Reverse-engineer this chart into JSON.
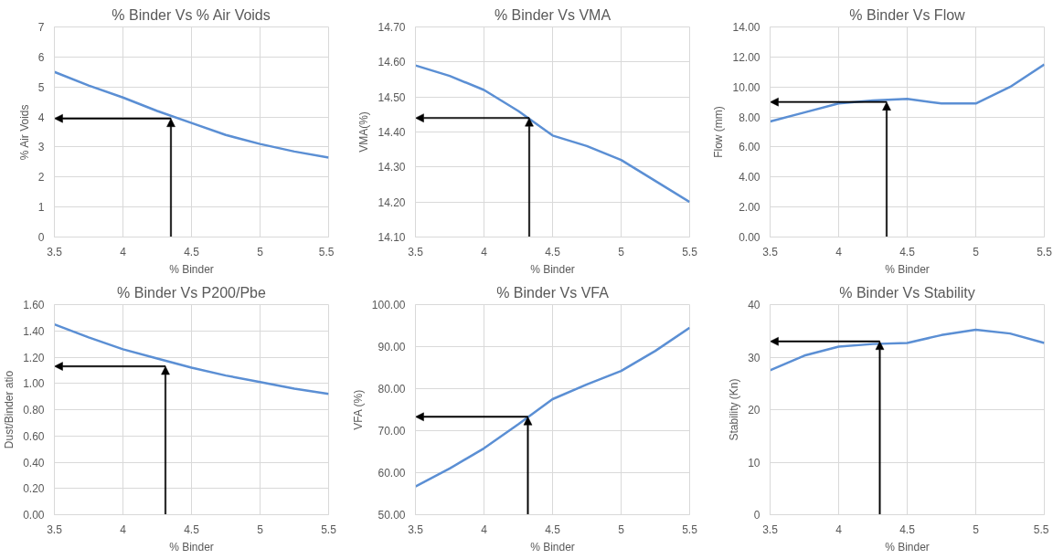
{
  "chart_data": [
    {
      "type": "line",
      "title": "% Binder Vs % Air Voids",
      "xlabel": "% Binder",
      "ylabel": "% Air Voids",
      "x": [
        3.5,
        3.75,
        4,
        4.25,
        4.5,
        4.75,
        5,
        5.25,
        5.5
      ],
      "series": [
        {
          "color": "#5b8fd4",
          "values": [
            5.5,
            5.05,
            4.65,
            4.2,
            3.8,
            3.4,
            3.1,
            2.85,
            2.65
          ]
        }
      ],
      "xlim": [
        3.5,
        5.5
      ],
      "xticks": [
        3.5,
        4,
        4.5,
        5,
        5.5
      ],
      "ylim": [
        0,
        7
      ],
      "yticks": [
        0,
        1,
        2,
        3,
        4,
        5,
        6,
        7
      ],
      "grid": true,
      "ref_lines": [
        {
          "axis": "x",
          "value": 4.35
        },
        {
          "axis": "y",
          "value": 3.95
        }
      ]
    },
    {
      "type": "line",
      "title": "% Binder Vs VMA",
      "xlabel": "% Binder",
      "ylabel": "VMA(%)",
      "x": [
        3.5,
        3.75,
        4,
        4.25,
        4.5,
        4.75,
        5,
        5.25,
        5.5
      ],
      "series": [
        {
          "color": "#5b8fd4",
          "values": [
            14.59,
            14.56,
            14.52,
            14.46,
            14.39,
            14.36,
            14.32,
            14.26,
            14.2
          ]
        }
      ],
      "xlim": [
        3.5,
        5.5
      ],
      "xticks": [
        3.5,
        4,
        4.5,
        5,
        5.5
      ],
      "ylim": [
        14.1,
        14.7
      ],
      "yticks": [
        {
          "value": 14.1,
          "label": "14.10"
        },
        {
          "value": 14.2,
          "label": "14.20"
        },
        {
          "value": 14.3,
          "label": "14.30"
        },
        {
          "value": 14.4,
          "label": "14.40"
        },
        {
          "value": 14.5,
          "label": "14.50"
        },
        {
          "value": 14.6,
          "label": "14.60"
        },
        {
          "value": 14.7,
          "label": "14.70"
        }
      ],
      "grid": true,
      "ref_lines": [
        {
          "axis": "x",
          "value": 4.33
        },
        {
          "axis": "y",
          "value": 14.44
        }
      ]
    },
    {
      "type": "line",
      "title": "% Binder Vs Flow",
      "xlabel": "% Binder",
      "ylabel": "Flow (mm)",
      "x": [
        3.5,
        3.75,
        4,
        4.25,
        4.5,
        4.75,
        5,
        5.25,
        5.5
      ],
      "series": [
        {
          "color": "#5b8fd4",
          "values": [
            7.7,
            8.3,
            8.9,
            9.1,
            9.2,
            8.9,
            8.9,
            10.0,
            11.5
          ]
        }
      ],
      "xlim": [
        3.5,
        5.5
      ],
      "xticks": [
        3.5,
        4,
        4.5,
        5,
        5.5
      ],
      "ylim": [
        0,
        14
      ],
      "yticks": [
        {
          "value": 0,
          "label": "0.00"
        },
        {
          "value": 2,
          "label": "2.00"
        },
        {
          "value": 4,
          "label": "4.00"
        },
        {
          "value": 6,
          "label": "6.00"
        },
        {
          "value": 8,
          "label": "8.00"
        },
        {
          "value": 10,
          "label": "10.00"
        },
        {
          "value": 12,
          "label": "12.00"
        },
        {
          "value": 14,
          "label": "14.00"
        }
      ],
      "grid": true,
      "ref_lines": [
        {
          "axis": "x",
          "value": 4.35
        },
        {
          "axis": "y",
          "value": 9.0
        }
      ]
    },
    {
      "type": "line",
      "title": "% Binder Vs P200/Pbe",
      "xlabel": "% Binder",
      "ylabel": "Dust/Binder atio",
      "x": [
        3.5,
        3.75,
        4,
        4.25,
        4.5,
        4.75,
        5,
        5.25,
        5.5
      ],
      "series": [
        {
          "color": "#5b8fd4",
          "values": [
            1.45,
            1.35,
            1.26,
            1.19,
            1.12,
            1.06,
            1.01,
            0.96,
            0.92
          ]
        }
      ],
      "xlim": [
        3.5,
        5.5
      ],
      "xticks": [
        3.5,
        4,
        4.5,
        5,
        5.5
      ],
      "ylim": [
        0,
        1.6
      ],
      "yticks": [
        {
          "value": 0,
          "label": "0.00"
        },
        {
          "value": 0.2,
          "label": "0.20"
        },
        {
          "value": 0.4,
          "label": "0.40"
        },
        {
          "value": 0.6,
          "label": "0.60"
        },
        {
          "value": 0.8,
          "label": "0.80"
        },
        {
          "value": 1.0,
          "label": "1.00"
        },
        {
          "value": 1.2,
          "label": "1.20"
        },
        {
          "value": 1.4,
          "label": "1.40"
        },
        {
          "value": 1.6,
          "label": "1.60"
        }
      ],
      "grid": true,
      "ref_lines": [
        {
          "axis": "x",
          "value": 4.31
        },
        {
          "axis": "y",
          "value": 1.13
        }
      ]
    },
    {
      "type": "line",
      "title": "% Binder Vs VFA",
      "xlabel": "% Binder",
      "ylabel": "VFA (%)",
      "x": [
        3.5,
        3.75,
        4,
        4.25,
        4.5,
        4.75,
        5,
        5.25,
        5.5
      ],
      "series": [
        {
          "color": "#5b8fd4",
          "values": [
            56.7,
            61,
            65.8,
            71.5,
            77.5,
            81,
            84.2,
            89,
            94.5
          ]
        }
      ],
      "xlim": [
        3.5,
        5.5
      ],
      "xticks": [
        3.5,
        4,
        4.5,
        5,
        5.5
      ],
      "ylim": [
        50,
        100
      ],
      "yticks": [
        {
          "value": 50,
          "label": "50.00"
        },
        {
          "value": 60,
          "label": "60.00"
        },
        {
          "value": 70,
          "label": "70.00"
        },
        {
          "value": 80,
          "label": "80.00"
        },
        {
          "value": 90,
          "label": "90.00"
        },
        {
          "value": 100,
          "label": "100.00"
        }
      ],
      "grid": true,
      "ref_lines": [
        {
          "axis": "x",
          "value": 4.32
        },
        {
          "axis": "y",
          "value": 73.3
        }
      ]
    },
    {
      "type": "line",
      "title": "% Binder Vs Stability",
      "xlabel": "% Binder",
      "ylabel": "Stability (Kn)",
      "x": [
        3.5,
        3.75,
        4,
        4.25,
        4.5,
        4.75,
        5,
        5.25,
        5.5
      ],
      "series": [
        {
          "color": "#5b8fd4",
          "values": [
            27.5,
            30.3,
            32,
            32.5,
            32.7,
            34.2,
            35.2,
            34.5,
            32.7
          ]
        }
      ],
      "xlim": [
        3.5,
        5.5
      ],
      "xticks": [
        3.5,
        4,
        4.5,
        5,
        5.5
      ],
      "ylim": [
        0,
        40
      ],
      "yticks": [
        0,
        10,
        20,
        30,
        40
      ],
      "grid": true,
      "ref_lines": [
        {
          "axis": "x",
          "value": 4.3
        },
        {
          "axis": "y",
          "value": 33
        }
      ]
    }
  ]
}
